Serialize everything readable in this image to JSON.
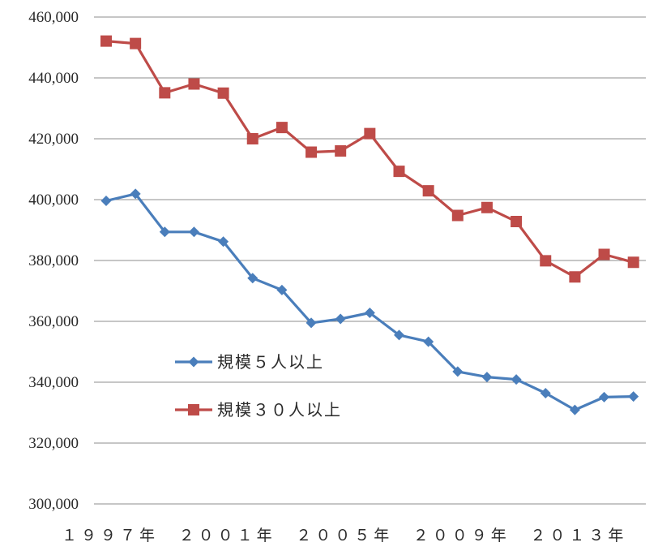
{
  "chart_data": {
    "type": "line",
    "title": "",
    "xlabel": "",
    "ylabel": "",
    "x": [
      1997,
      1998,
      1999,
      2000,
      2001,
      2002,
      2003,
      2004,
      2005,
      2006,
      2007,
      2008,
      2009,
      2010,
      2011,
      2012,
      2013,
      2014,
      2015
    ],
    "x_tick_labels": [
      {
        "x": 1997,
        "label": "１９９７年"
      },
      {
        "x": 2001,
        "label": "２００１年"
      },
      {
        "x": 2005,
        "label": "２００５年"
      },
      {
        "x": 2009,
        "label": "２００９年"
      },
      {
        "x": 2013,
        "label": "２０１３年"
      }
    ],
    "ylim": [
      300000,
      460000
    ],
    "y_ticks": [
      300000,
      320000,
      340000,
      360000,
      380000,
      400000,
      420000,
      440000,
      460000
    ],
    "y_tick_labels": [
      "300,000",
      "320,000",
      "340,000",
      "360,000",
      "380,000",
      "400,000",
      "420,000",
      "440,000",
      "460,000"
    ],
    "grid": "horizontal",
    "legend_position": "lower-left",
    "series": [
      {
        "name": "規模５人以上",
        "color": "#4a7ebb",
        "marker": "diamond",
        "values": [
          399600,
          401900,
          389400,
          389400,
          386200,
          374200,
          370300,
          359500,
          360800,
          362800,
          355500,
          353300,
          343500,
          341700,
          340900,
          336400,
          330900,
          335100,
          335300
        ]
      },
      {
        "name": "規模３０人以上",
        "color": "#be4b48",
        "marker": "square",
        "values": [
          452100,
          451300,
          435100,
          438000,
          435000,
          420000,
          423700,
          415600,
          416000,
          421700,
          409300,
          402900,
          394800,
          397400,
          392800,
          379900,
          374600,
          382000,
          379400
        ]
      }
    ]
  }
}
